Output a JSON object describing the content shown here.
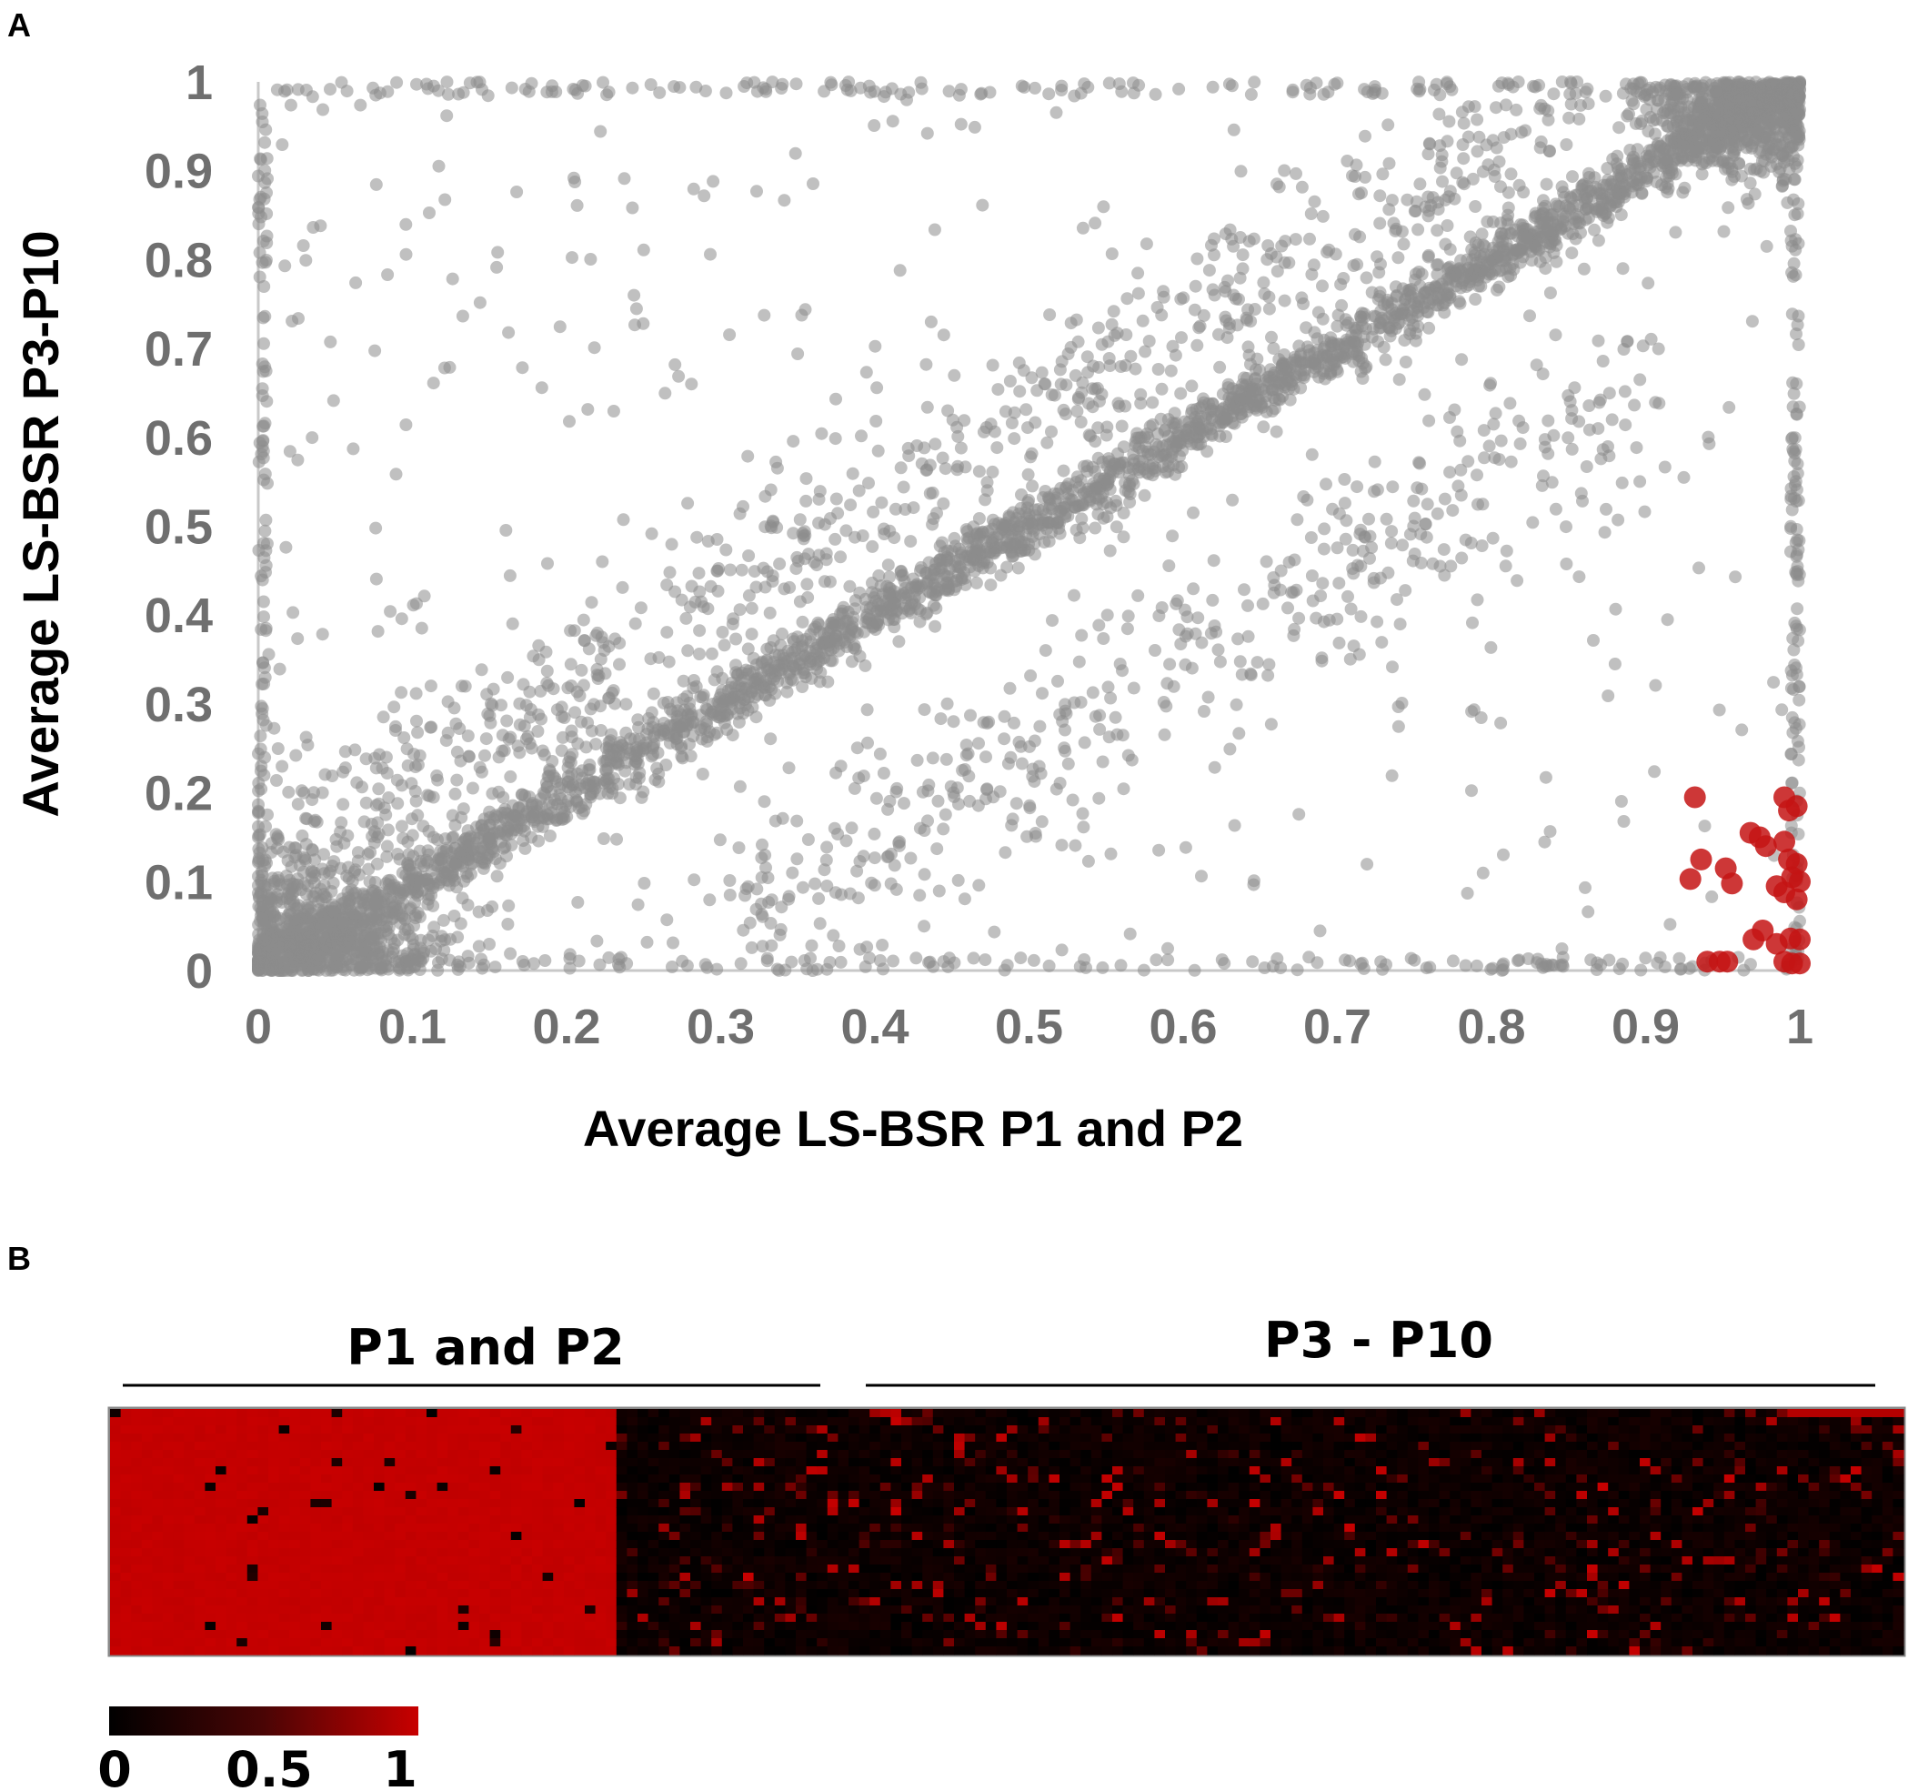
{
  "panels": {
    "a": "A",
    "b": "B"
  },
  "colors": {
    "gray": "#8c8c8c",
    "red": "#c41414",
    "axis": "#c8c8c8",
    "hm_high": "#c80000",
    "hm_low": "#000000"
  },
  "chart_data": [
    {
      "type": "scatter",
      "title": "",
      "xlabel": "Average LS-BSR P1 and P2",
      "ylabel": "Average LS-BSR P3-P10",
      "xlim": [
        0,
        1
      ],
      "ylim": [
        0,
        1
      ],
      "xticks": [
        "0",
        "0.1",
        "0.2",
        "0.3",
        "0.4",
        "0.5",
        "0.6",
        "0.7",
        "0.8",
        "0.9",
        "1"
      ],
      "yticks": [
        "0",
        "0.1",
        "0.2",
        "0.3",
        "0.4",
        "0.5",
        "0.6",
        "0.7",
        "0.8",
        "0.9",
        "1"
      ],
      "grid": false,
      "series": [
        {
          "color": "#8c8c8c",
          "description": "thousands of gray points: dense diagonal band from (0,0) to (1,1), dense cluster near origin and near (1,1), scattered points elsewhere",
          "anchor_points": [
            [
              0,
              0
            ],
            [
              0.05,
              0.05
            ],
            [
              0.1,
              0.1
            ],
            [
              0.2,
              0.2
            ],
            [
              0.3,
              0.3
            ],
            [
              0.4,
              0.4
            ],
            [
              0.5,
              0.5
            ],
            [
              0.6,
              0.6
            ],
            [
              0.7,
              0.7
            ],
            [
              0.8,
              0.8
            ],
            [
              0.9,
              0.9
            ],
            [
              1,
              1
            ],
            [
              0.23,
              0.39
            ],
            [
              0.27,
              0.57
            ],
            [
              0.36,
              0.68
            ],
            [
              0.5,
              0.62
            ],
            [
              0.67,
              0.69
            ],
            [
              0.82,
              0.45
            ],
            [
              0.03,
              0.99
            ],
            [
              0.1,
              0.99
            ],
            [
              0.3,
              0.99
            ],
            [
              0.4,
              0.99
            ],
            [
              0.85,
              0.99
            ],
            [
              0,
              0.97
            ],
            [
              0,
              0.5
            ],
            [
              0,
              0.2
            ]
          ]
        },
        {
          "color": "#c41414",
          "description": "highlighted genes: high in P1 and P2, low in P3-P10",
          "points": [
            [
              0.932,
              0.195
            ],
            [
              0.936,
              0.125
            ],
            [
              0.929,
              0.103
            ],
            [
              0.94,
              0.01
            ],
            [
              0.953,
              0.01
            ],
            [
              0.948,
              0.01
            ],
            [
              0.952,
              0.115
            ],
            [
              0.956,
              0.098
            ],
            [
              0.968,
              0.155
            ],
            [
              0.974,
              0.15
            ],
            [
              0.978,
              0.14
            ],
            [
              0.97,
              0.035
            ],
            [
              0.976,
              0.045
            ],
            [
              0.985,
              0.03
            ],
            [
              0.99,
              0.195
            ],
            [
              0.993,
              0.18
            ],
            [
              0.998,
              0.185
            ],
            [
              0.99,
              0.145
            ],
            [
              0.993,
              0.125
            ],
            [
              0.998,
              0.12
            ],
            [
              1.0,
              0.1
            ],
            [
              0.985,
              0.095
            ],
            [
              0.99,
              0.088
            ],
            [
              0.995,
              0.105
            ],
            [
              0.998,
              0.08
            ],
            [
              0.994,
              0.036
            ],
            [
              1.0,
              0.035
            ],
            [
              0.99,
              0.01
            ],
            [
              0.995,
              0.008
            ],
            [
              1.0,
              0.008
            ]
          ]
        }
      ]
    },
    {
      "type": "heatmap",
      "title": "",
      "column_groups": [
        {
          "label": "P1 and P2",
          "count": 48
        },
        {
          "label": "P3 - P10",
          "count": 122
        }
      ],
      "rows": 30,
      "values_description": "P1 and P2 columns mostly 1 (red) with rare 0 cells; P3 - P10 columns mostly 0 (black) with sparse partial/full red cells",
      "colorbar": {
        "min": 0,
        "max": 1,
        "labels": [
          "0",
          "0.5",
          "1"
        ]
      }
    }
  ]
}
